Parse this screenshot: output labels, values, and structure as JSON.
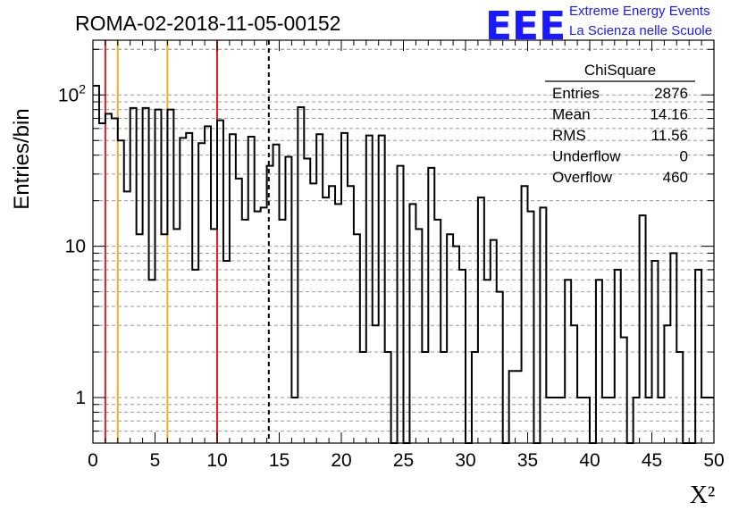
{
  "header": {
    "title": "ROMA-02-2018-11-05-00152",
    "logo_text": "EEE",
    "logo_line1": "Extreme Energy Events",
    "logo_line2": "La Scienza nelle Scuole"
  },
  "stats": {
    "title": "ChiSquare",
    "rows": [
      {
        "label": "Entries",
        "value": "2876"
      },
      {
        "label": "Mean",
        "value": "14.16"
      },
      {
        "label": "RMS",
        "value": "11.56"
      },
      {
        "label": "Underflow",
        "value": "0"
      },
      {
        "label": "Overflow",
        "value": "460"
      }
    ]
  },
  "chart_data": {
    "type": "histogram",
    "title": "ROMA-02-2018-11-05-00152",
    "xlabel": "X²",
    "ylabel": "Entries/bin",
    "xlim": [
      0,
      50
    ],
    "ylim": [
      0.5,
      230
    ],
    "yscale": "log",
    "bin_width": 0.5,
    "x_ticks": [
      "0",
      "5",
      "10",
      "15",
      "20",
      "25",
      "30",
      "35",
      "40",
      "45",
      "50"
    ],
    "y_ticks": [
      {
        "value": 1,
        "label": "1"
      },
      {
        "value": 10,
        "label": "10"
      },
      {
        "value": 100,
        "label": "10²"
      }
    ],
    "grid": true,
    "counts": [
      115,
      65,
      75,
      70,
      50,
      23,
      82,
      12,
      82,
      6,
      80,
      12,
      80,
      13,
      52,
      56,
      7,
      48,
      62,
      13,
      68,
      8,
      55,
      28,
      15,
      53,
      17,
      18,
      34,
      47,
      15,
      39,
      1,
      83,
      38,
      26,
      55,
      21,
      25,
      19,
      56,
      25,
      12,
      2,
      54,
      3,
      54,
      2,
      0.4,
      34,
      0.4,
      19,
      13,
      2,
      33,
      15,
      2,
      12,
      10,
      7,
      0.4,
      2,
      21,
      6,
      11,
      5,
      0.4,
      1.5,
      1.5,
      25,
      17,
      0.4,
      18,
      1,
      1,
      1,
      6,
      3,
      1,
      1,
      0.4,
      6,
      1,
      1,
      7,
      2.5,
      0.4,
      1,
      16,
      1,
      8,
      1,
      3,
      9,
      2,
      0.4,
      0.4,
      7,
      1,
      1
    ],
    "vertical_lines": [
      {
        "x": 1,
        "color": "#dd2222",
        "style": "solid"
      },
      {
        "x": 2,
        "color": "#f0b020",
        "style": "solid"
      },
      {
        "x": 6,
        "color": "#f0b020",
        "style": "solid"
      },
      {
        "x": 10,
        "color": "#dd2222",
        "style": "solid"
      },
      {
        "x": 14.16,
        "color": "#000000",
        "style": "dashed"
      }
    ],
    "legend": "stats box top-right"
  }
}
